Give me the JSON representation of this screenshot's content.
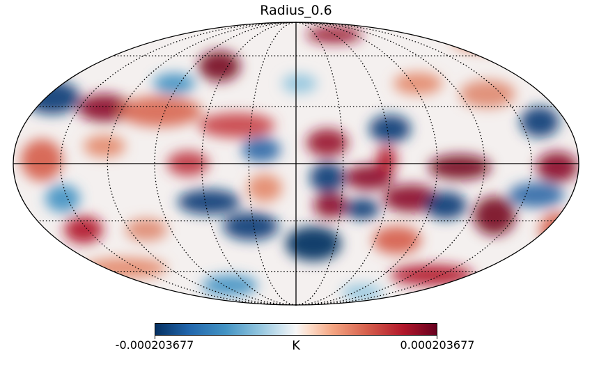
{
  "title": "Radius_0.6",
  "colorbar": {
    "min_label": "-0.000203677",
    "max_label": "0.000203677",
    "unit": "K",
    "min_value": -0.000203677,
    "max_value": 0.000203677,
    "colormap": "RdBu_r"
  },
  "projection": "Mollweide",
  "graticule": {
    "enabled": true,
    "style": "dotted",
    "equator_and_central_meridian": "solid"
  },
  "colors": {
    "cold": "#053061",
    "neutral": "#f7f7f7",
    "hot": "#67001f"
  }
}
